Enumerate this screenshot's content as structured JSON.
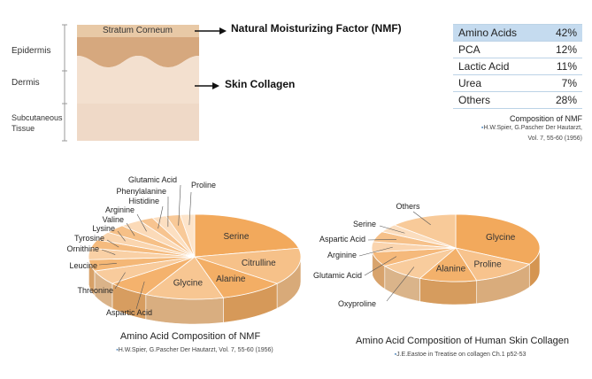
{
  "skin": {
    "stratum_corneum": "Stratum Corneum",
    "epidermis": "Epidermis",
    "dermis": "Dermis",
    "subcutaneous": [
      "Subcutaneous",
      "Tissue"
    ],
    "arrow_nmf": "Natural Moisturizing Factor (NMF)",
    "arrow_collagen": "Skin Collagen"
  },
  "nmf_table": {
    "rows": [
      {
        "name": "Amino Acids",
        "value": "42%"
      },
      {
        "name": "PCA",
        "value": "12%"
      },
      {
        "name": "Lactic Acid",
        "value": "11%"
      },
      {
        "name": "Urea",
        "value": "7%"
      },
      {
        "name": "Others",
        "value": "28%"
      }
    ],
    "caption": "Composition of NMF",
    "source_line1": "H.W.Spier, G.Pascher Der Hautarzt,",
    "source_line2": "Vol. 7, 55-60 (1956)"
  },
  "chart_data": [
    {
      "type": "pie",
      "title": "Amino Acid Composition of NMF",
      "source": "H.W.Spier, G.Pascher Der Hautarzt, Vol. 7, 55-60 (1956)",
      "labels": [
        "Serine",
        "Citrulline",
        "Alanine",
        "Glycine",
        "Aspartic Acid",
        "Threonine",
        "Leucine",
        "Ornithine",
        "Tyrosine",
        "Lysine",
        "Valine",
        "Arginine",
        "Histidine",
        "Phenylalanine",
        "Glutamic Acid",
        "Proline"
      ],
      "values": [
        20,
        13,
        9,
        11,
        6,
        5,
        4,
        4,
        3,
        3,
        3,
        3,
        2,
        2,
        2,
        2
      ],
      "outside_labels": [
        "Proline",
        "Glutamic Acid",
        "Phenylalanine",
        "Histidine",
        "Arginine",
        "Valine",
        "Lysine",
        "Tyrosine",
        "Ornithine",
        "Leucine",
        "Threonine",
        "Aspartic Acid"
      ],
      "inside_labels": [
        "Serine",
        "Citrulline",
        "Alanine",
        "Glycine"
      ]
    },
    {
      "type": "pie",
      "title": "Amino Acid Composition of Human Skin Collagen",
      "source": "J.E.Eastoe in Treatise on collagen Ch.1 p52-53",
      "labels": [
        "Glycine",
        "Proline",
        "Alanine",
        "Oxyproline",
        "Glutamic Acid",
        "Arginine",
        "Aspartic Acid",
        "Serine",
        "Others"
      ],
      "values": [
        33,
        13,
        11,
        9,
        7,
        5,
        5,
        4,
        13
      ],
      "outside_labels": [
        "Others",
        "Serine",
        "Aspartic Acid",
        "Arginine",
        "Glutamic Acid",
        "Oxyproline"
      ],
      "inside_labels": [
        "Glycine",
        "Proline",
        "Alanine"
      ]
    }
  ],
  "colors": {
    "stratum": "#e8c9a6",
    "epidermis": "#d6a87e",
    "dermis": "#f3e0cf",
    "subcutaneous": "#efd9c7",
    "table_header": "#c5dbef",
    "pie_dark": "#f2a95c",
    "pie_light": "#fde6cf"
  }
}
